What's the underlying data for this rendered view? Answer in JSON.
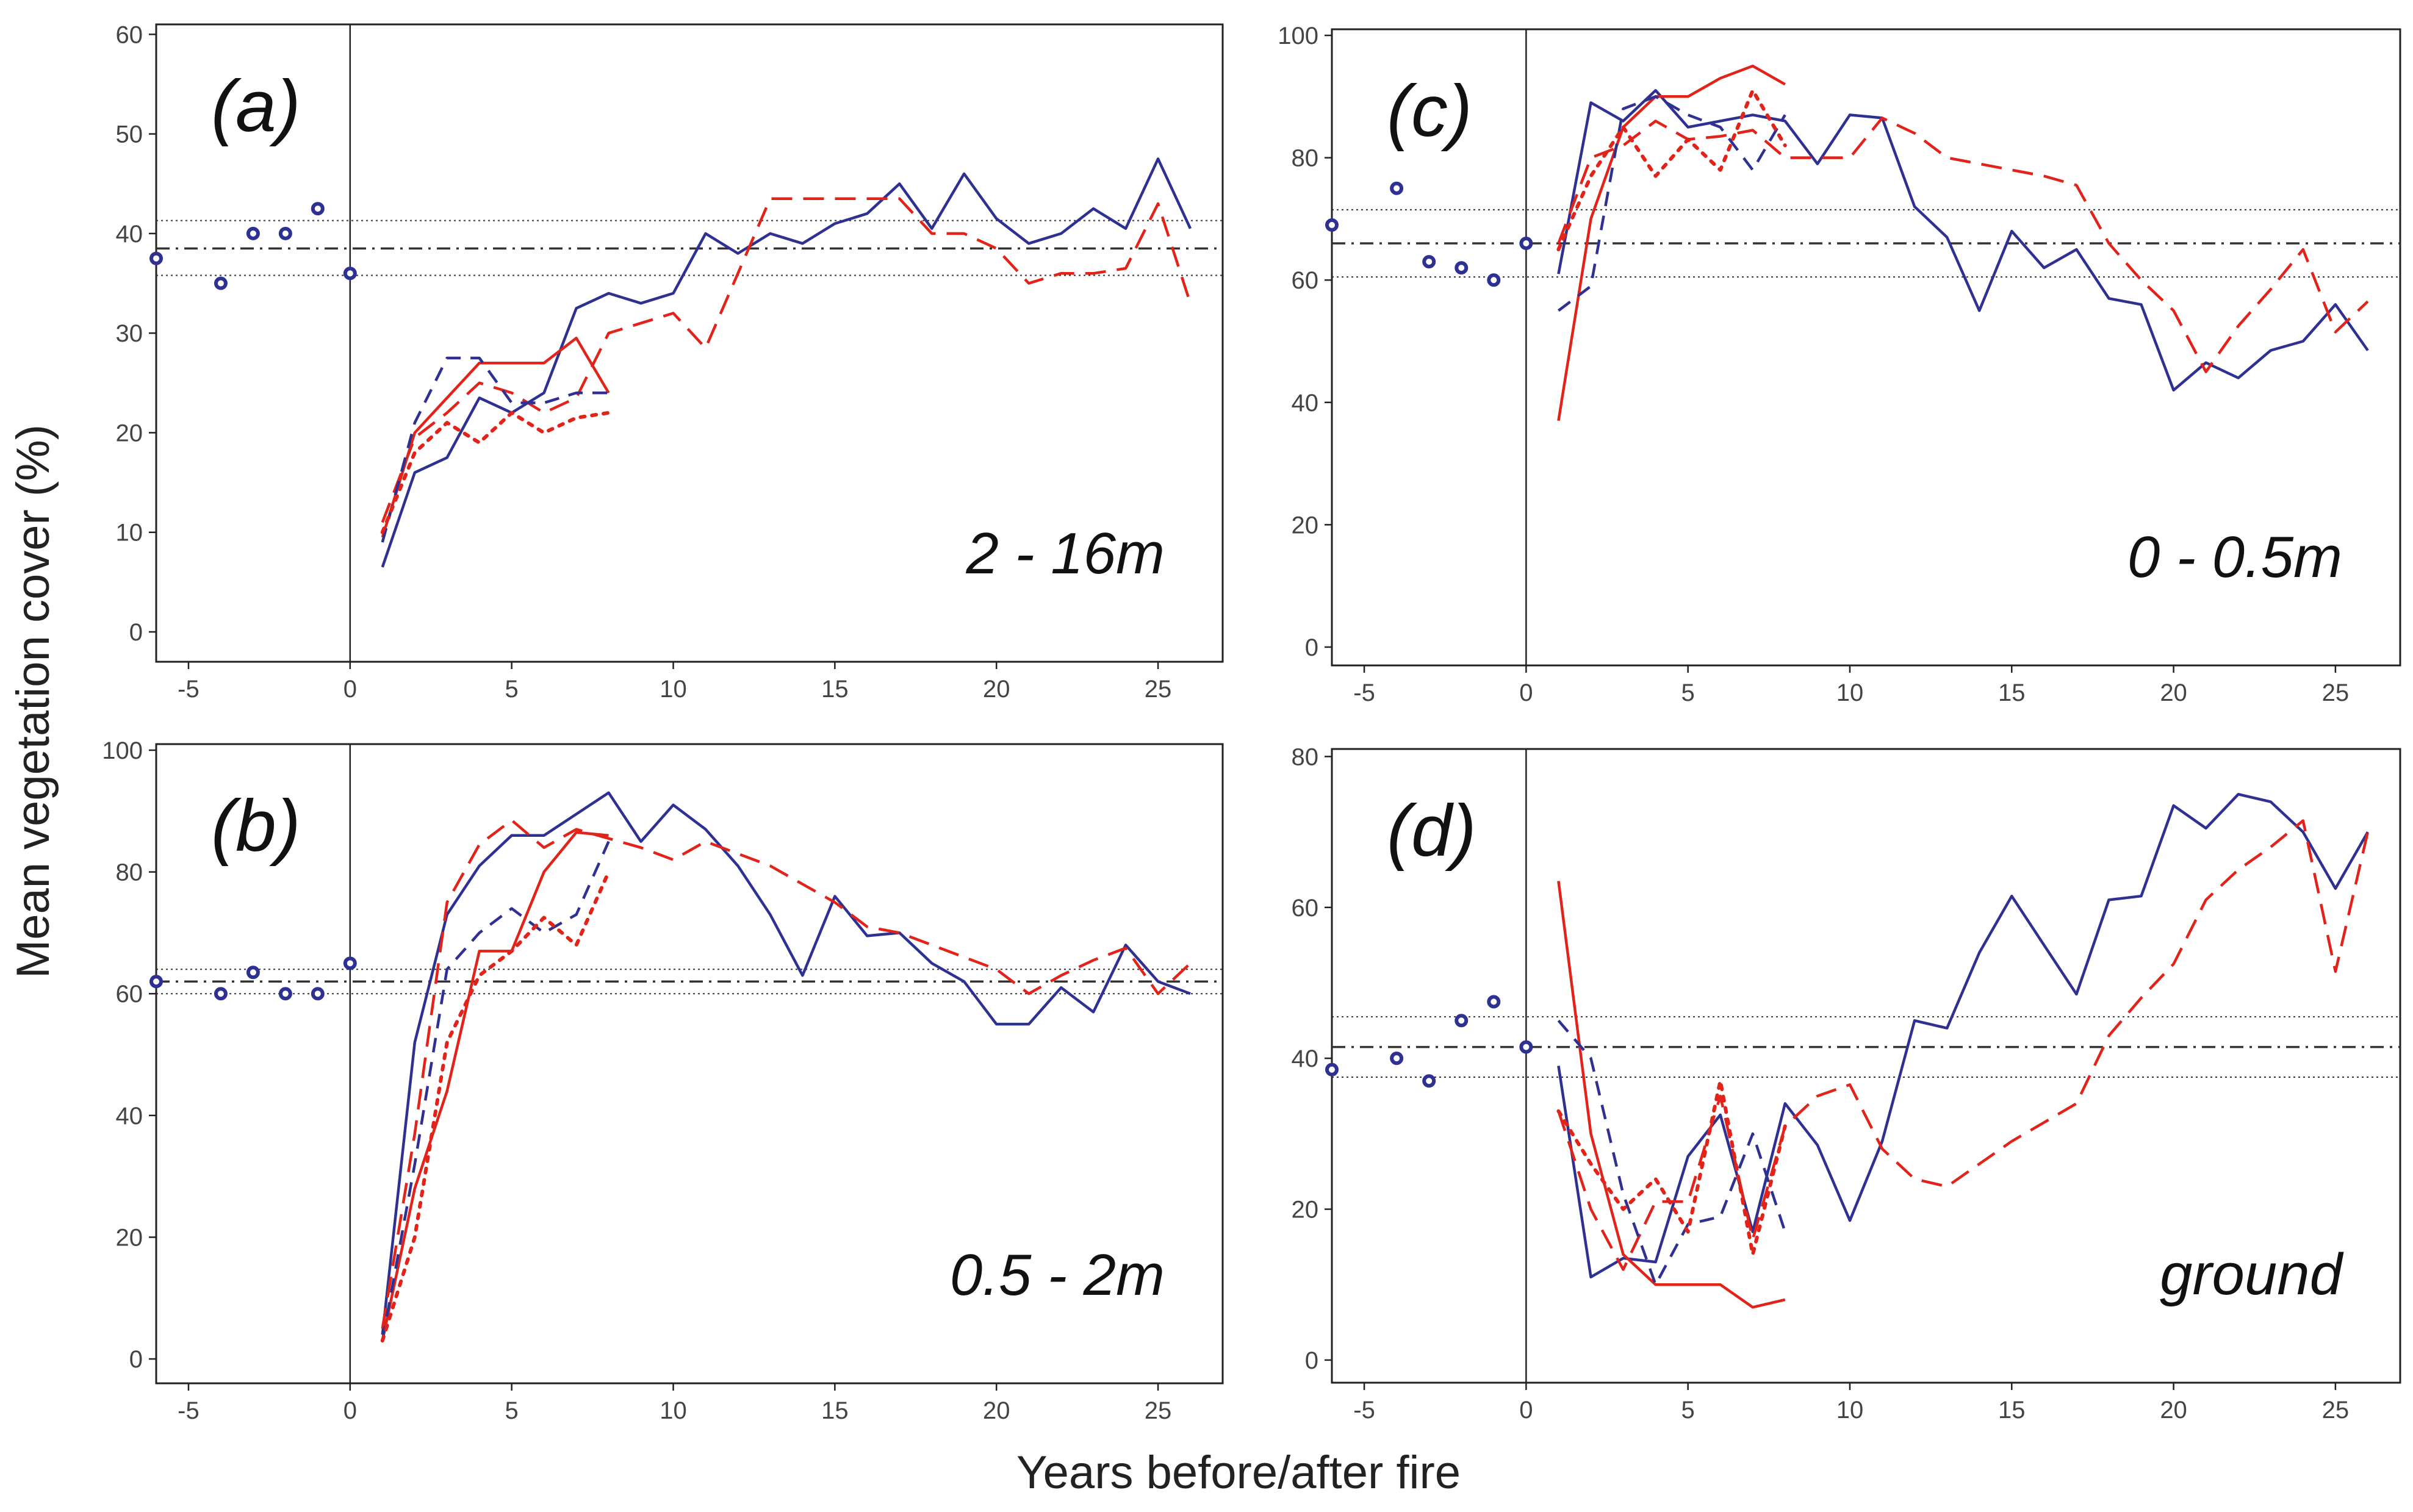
{
  "figure": {
    "ylabel": "Mean vegetation cover (%)",
    "xlabel": "Years before/after fire"
  },
  "colors": {
    "blue": "#2e3192",
    "red": "#e2231a",
    "reference": "#333333",
    "frame": "#222222"
  },
  "chart_data": [
    {
      "type": "line",
      "panel": "(a)",
      "range_label": "2 - 16m",
      "xlim": [
        -6,
        27
      ],
      "ylim": [
        -3,
        61
      ],
      "xticks": [
        -5,
        0,
        5,
        10,
        15,
        20,
        25
      ],
      "yticks": [
        0,
        10,
        20,
        30,
        40,
        50,
        60
      ],
      "pre_fire_points": {
        "x": [
          -6,
          -4,
          -3,
          -2,
          -1,
          0
        ],
        "y": [
          37.5,
          35,
          40,
          40,
          42.5,
          36
        ]
      },
      "reference": {
        "mean": 38.5,
        "upper": 41.3,
        "lower": 35.8
      },
      "series": [
        {
          "name": "blue solid",
          "color": "blue",
          "dash": "solid",
          "x": [
            1,
            2,
            3,
            4,
            5,
            6,
            7,
            8,
            9,
            10,
            11,
            12,
            13,
            14,
            15,
            16,
            17,
            18,
            19,
            20,
            21,
            22,
            23,
            24,
            25,
            26
          ],
          "y": [
            6.5,
            16,
            17.5,
            23.5,
            22,
            24,
            32.5,
            34,
            33,
            34,
            40,
            38,
            40,
            39,
            41,
            42,
            45,
            40.5,
            46,
            41.5,
            39,
            40,
            42.5,
            40.5,
            47.5,
            40.5
          ]
        },
        {
          "name": "red long dash",
          "color": "red",
          "dash": "long",
          "x": [
            1,
            2,
            3,
            4,
            5,
            6,
            7,
            8,
            9,
            10,
            11,
            12,
            13,
            14,
            15,
            16,
            17,
            18,
            19,
            20,
            21,
            22,
            23,
            24,
            25,
            26
          ],
          "y": [
            11,
            19.5,
            22,
            25,
            24,
            22,
            23.5,
            30,
            31,
            32,
            28.5,
            36,
            43.5,
            43.5,
            43.5,
            43.5,
            43.5,
            40,
            40,
            38.5,
            35,
            36,
            36,
            36.5,
            43,
            33
          ]
        },
        {
          "name": "red solid",
          "color": "red",
          "dash": "solid",
          "x": [
            1,
            2,
            3,
            4,
            5,
            6,
            7,
            8
          ],
          "y": [
            9.5,
            20,
            23.5,
            27,
            27,
            27,
            29.5,
            24
          ]
        },
        {
          "name": "blue dashed",
          "color": "blue",
          "dash": "medium",
          "x": [
            1,
            2,
            3,
            4,
            5,
            6,
            7,
            8
          ],
          "y": [
            9,
            21,
            27.5,
            27.5,
            23,
            23,
            24,
            24
          ]
        },
        {
          "name": "red dotted",
          "color": "red",
          "dash": "dotted",
          "x": [
            1,
            2,
            3,
            4,
            5,
            6,
            7,
            8
          ],
          "y": [
            10,
            18,
            21,
            19,
            22,
            20,
            21.5,
            22
          ]
        }
      ]
    },
    {
      "type": "line",
      "panel": "(c)",
      "range_label": "0 - 0.5m",
      "xlim": [
        -6,
        27
      ],
      "ylim": [
        -3,
        101
      ],
      "xticks": [
        -5,
        0,
        5,
        10,
        15,
        20,
        25
      ],
      "yticks": [
        0,
        20,
        40,
        60,
        80,
        100
      ],
      "pre_fire_points": {
        "x": [
          -6,
          -4,
          -3,
          -2,
          -1,
          0
        ],
        "y": [
          69,
          75,
          63,
          62,
          60,
          66
        ]
      },
      "reference": {
        "mean": 66,
        "upper": 71.5,
        "lower": 60.5
      },
      "series": [
        {
          "name": "blue solid",
          "color": "blue",
          "dash": "solid",
          "x": [
            1,
            2,
            3,
            4,
            5,
            6,
            7,
            8,
            9,
            10,
            11,
            12,
            13,
            14,
            15,
            16,
            17,
            18,
            19,
            20,
            21,
            22,
            23,
            24,
            25,
            26
          ],
          "y": [
            61,
            89,
            86,
            91,
            85,
            86,
            87,
            86,
            79,
            87,
            86.5,
            72,
            67,
            55,
            68,
            62,
            65,
            57,
            56,
            42,
            46.5,
            44,
            48.5,
            50,
            56,
            48.5
          ]
        },
        {
          "name": "red long dash",
          "color": "red",
          "dash": "long",
          "x": [
            1,
            2,
            3,
            4,
            5,
            6,
            7,
            8,
            9,
            10,
            11,
            12,
            13,
            14,
            15,
            16,
            17,
            18,
            19,
            20,
            21,
            22,
            23,
            24,
            25,
            26
          ],
          "y": [
            66,
            80,
            82,
            86,
            83,
            83.5,
            84.5,
            80,
            80,
            80,
            86.5,
            84,
            80,
            79,
            78,
            77,
            75.5,
            66,
            60,
            55,
            45,
            52.5,
            58.5,
            65,
            51.5,
            56.5
          ]
        },
        {
          "name": "red solid",
          "color": "red",
          "dash": "solid",
          "x": [
            1,
            2,
            3,
            4,
            5,
            6,
            7,
            8
          ],
          "y": [
            37,
            70,
            85,
            90,
            90,
            93,
            95,
            92
          ]
        },
        {
          "name": "blue dashed",
          "color": "blue",
          "dash": "medium",
          "x": [
            1,
            2,
            3,
            4,
            5,
            6,
            7,
            8
          ],
          "y": [
            55,
            59,
            88,
            90,
            87,
            85,
            78,
            87
          ]
        },
        {
          "name": "red dotted",
          "color": "red",
          "dash": "dotted",
          "x": [
            1,
            2,
            3,
            4,
            5,
            6,
            7,
            8
          ],
          "y": [
            65,
            77,
            85,
            77,
            83,
            78,
            91,
            82
          ]
        }
      ]
    },
    {
      "type": "line",
      "panel": "(b)",
      "range_label": "0.5 - 2m",
      "xlim": [
        -6,
        27
      ],
      "ylim": [
        -4,
        101
      ],
      "xticks": [
        -5,
        0,
        5,
        10,
        15,
        20,
        25
      ],
      "yticks": [
        0,
        20,
        40,
        60,
        80,
        100
      ],
      "pre_fire_points": {
        "x": [
          -6,
          -4,
          -3,
          -2,
          -1,
          0
        ],
        "y": [
          62,
          60,
          63.5,
          60,
          60,
          65
        ]
      },
      "reference": {
        "mean": 62,
        "upper": 64,
        "lower": 60
      },
      "series": [
        {
          "name": "blue solid",
          "color": "blue",
          "dash": "solid",
          "x": [
            1,
            2,
            3,
            4,
            5,
            6,
            7,
            8,
            9,
            10,
            11,
            12,
            13,
            14,
            15,
            16,
            17,
            18,
            19,
            20,
            21,
            22,
            23,
            24,
            25,
            26
          ],
          "y": [
            4,
            52,
            73,
            81,
            86,
            86,
            89.5,
            93,
            85,
            91,
            87,
            81,
            73,
            63,
            76,
            69.5,
            70,
            65,
            62,
            55,
            55,
            61,
            57,
            68,
            62,
            60
          ]
        },
        {
          "name": "red long dash",
          "color": "red",
          "dash": "long",
          "x": [
            1,
            2,
            3,
            4,
            5,
            6,
            7,
            8,
            9,
            10,
            11,
            12,
            13,
            14,
            15,
            16,
            17,
            18,
            19,
            20,
            21,
            22,
            23,
            24,
            25,
            26
          ],
          "y": [
            5,
            37,
            75,
            84.5,
            88.5,
            84,
            87,
            85.5,
            84,
            82,
            85,
            83,
            81,
            78,
            75,
            71,
            70,
            68,
            66,
            64,
            60,
            63,
            65.5,
            67.5,
            60,
            65
          ]
        },
        {
          "name": "red solid",
          "color": "red",
          "dash": "solid",
          "x": [
            1,
            2,
            3,
            4,
            5,
            6,
            7,
            8
          ],
          "y": [
            3,
            28,
            44,
            67,
            67,
            80,
            86.5,
            86
          ]
        },
        {
          "name": "blue dashed",
          "color": "blue",
          "dash": "medium",
          "x": [
            1,
            2,
            3,
            4,
            5,
            6,
            7,
            8
          ],
          "y": [
            3,
            32,
            64,
            70,
            74,
            70,
            73,
            85
          ]
        },
        {
          "name": "red dotted",
          "color": "red",
          "dash": "dotted",
          "x": [
            1,
            2,
            3,
            4,
            5,
            6,
            7,
            8
          ],
          "y": [
            3,
            20,
            52,
            63,
            67,
            72.5,
            68,
            80
          ]
        }
      ]
    },
    {
      "type": "line",
      "panel": "(d)",
      "range_label": "ground",
      "xlim": [
        -6,
        27
      ],
      "ylim": [
        -3,
        81
      ],
      "xticks": [
        -5,
        0,
        5,
        10,
        15,
        20,
        25
      ],
      "yticks": [
        0,
        20,
        40,
        60,
        80
      ],
      "pre_fire_points": {
        "x": [
          -6,
          -4,
          -3,
          -2,
          -1,
          0
        ],
        "y": [
          38.5,
          40,
          37,
          45,
          47.5,
          41.5
        ]
      },
      "reference": {
        "mean": 41.5,
        "upper": 45.5,
        "lower": 37.5
      },
      "series": [
        {
          "name": "blue solid",
          "color": "blue",
          "dash": "solid",
          "x": [
            1,
            2,
            3,
            4,
            5,
            6,
            7,
            8,
            9,
            10,
            11,
            12,
            13,
            14,
            15,
            16,
            17,
            18,
            19,
            20,
            21,
            22,
            23,
            24,
            25,
            26
          ],
          "y": [
            39,
            11,
            13.5,
            13,
            27,
            32.5,
            17,
            34,
            28.5,
            18.5,
            29,
            45,
            44,
            54,
            61.5,
            55,
            48.5,
            61,
            61.5,
            73.5,
            70.5,
            75,
            74,
            70,
            62.5,
            70
          ]
        },
        {
          "name": "red long dash",
          "color": "red",
          "dash": "long",
          "x": [
            1,
            2,
            3,
            4,
            5,
            6,
            7,
            8,
            9,
            10,
            11,
            12,
            13,
            14,
            15,
            16,
            17,
            18,
            19,
            20,
            21,
            22,
            23,
            24,
            25,
            26
          ],
          "y": [
            33,
            20,
            12,
            21,
            21,
            35,
            16,
            31,
            35,
            36.5,
            28,
            24,
            23,
            26,
            29,
            31.5,
            34,
            43,
            48,
            52.5,
            61,
            65,
            68,
            71.5,
            51.5,
            70
          ]
        },
        {
          "name": "red solid",
          "color": "red",
          "dash": "solid",
          "x": [
            1,
            2,
            3,
            4,
            5,
            6,
            7,
            8
          ],
          "y": [
            63.5,
            30,
            14,
            10,
            10,
            10,
            7,
            8
          ]
        },
        {
          "name": "blue dashed",
          "color": "blue",
          "dash": "medium",
          "x": [
            1,
            2,
            3,
            4,
            5,
            6,
            7,
            8
          ],
          "y": [
            45,
            40,
            22,
            10,
            18,
            19,
            30,
            17
          ]
        },
        {
          "name": "red dotted",
          "color": "red",
          "dash": "dotted",
          "x": [
            1,
            2,
            3,
            4,
            5,
            6,
            7,
            8
          ],
          "y": [
            33,
            26,
            20,
            24,
            17,
            37,
            14,
            31
          ]
        }
      ]
    }
  ]
}
